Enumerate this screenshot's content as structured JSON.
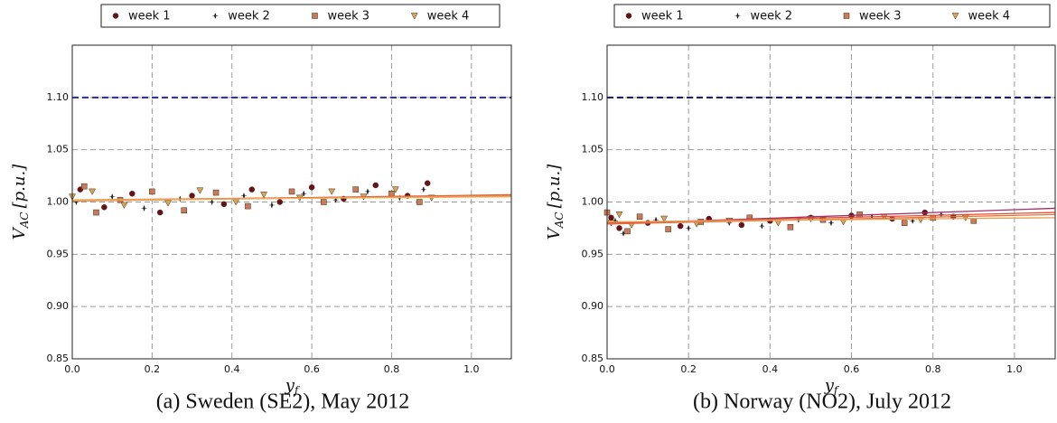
{
  "chart_data": [
    {
      "type": "scatter",
      "caption": "(a) Sweden (SE2), May 2012",
      "ylabel": {
        "main": "V",
        "sub": "AC",
        "rest": "[p.u.]"
      },
      "xlabel": {
        "main": "y",
        "sub": "f"
      },
      "xlim": [
        0,
        1.1
      ],
      "ylim": [
        0.85,
        1.15
      ],
      "grid": true,
      "xticks": [
        {
          "value": 0,
          "label": "0.0"
        },
        {
          "value": 0.2,
          "label": "0.2"
        },
        {
          "value": 0.4,
          "label": "0.4"
        },
        {
          "value": 0.6,
          "label": "0.6"
        },
        {
          "value": 0.8,
          "label": "0.8"
        },
        {
          "value": 1,
          "label": "1.0"
        }
      ],
      "yticks": [
        {
          "value": 0.85,
          "label": "0.85"
        },
        {
          "value": 0.9,
          "label": "0.90"
        },
        {
          "value": 0.95,
          "label": "0.95"
        },
        {
          "value": 1,
          "label": "1.00"
        },
        {
          "value": 1.05,
          "label": "1.05"
        },
        {
          "value": 1.1,
          "label": "1.10"
        }
      ],
      "hline": {
        "value": 1.1,
        "color": "#2a2aa0"
      },
      "series": [
        {
          "name": "week 1",
          "marker": "o",
          "color": "#6b0f1a",
          "fit_color": "#e0603a",
          "fit": [
            1.001,
            1.007
          ],
          "x": [
            0.02,
            0.08,
            0.15,
            0.22,
            0.3,
            0.38,
            0.45,
            0.52,
            0.6,
            0.68,
            0.76,
            0.84,
            0.89
          ],
          "values": [
            1.012,
            0.995,
            1.008,
            0.99,
            1.006,
            0.998,
            1.012,
            1.0,
            1.014,
            1.003,
            1.016,
            1.006,
            1.018
          ]
        },
        {
          "name": "week 2",
          "marker": "*",
          "color": "#222222",
          "fit_color": "#e8503a",
          "fit": [
            1.002,
            1.006
          ],
          "x": [
            0.01,
            0.1,
            0.18,
            0.27,
            0.35,
            0.43,
            0.5,
            0.58,
            0.66,
            0.74,
            0.82,
            0.88
          ],
          "values": [
            1.0,
            1.005,
            0.994,
            1.003,
            1.0,
            1.006,
            0.997,
            1.008,
            1.002,
            1.01,
            1.004,
            1.012
          ]
        },
        {
          "name": "week 3",
          "marker": "s",
          "color": "#c87a5a",
          "fit_color": "#ee8a50",
          "fit": [
            1.001,
            1.006
          ],
          "x": [
            0.03,
            0.06,
            0.12,
            0.2,
            0.28,
            0.36,
            0.44,
            0.55,
            0.63,
            0.71,
            0.8,
            0.87
          ],
          "values": [
            1.015,
            0.99,
            1.002,
            1.01,
            0.992,
            1.009,
            0.996,
            1.01,
            1.0,
            1.012,
            1.008,
            1.0
          ]
        },
        {
          "name": "week 4",
          "marker": "v",
          "color": "#d8a65a",
          "fit_color": "#e8b050",
          "fit": [
            1.002,
            1.005
          ],
          "x": [
            0.0,
            0.05,
            0.13,
            0.24,
            0.32,
            0.41,
            0.48,
            0.57,
            0.65,
            0.73,
            0.81,
            0.9
          ],
          "values": [
            1.005,
            1.01,
            0.997,
            0.999,
            1.011,
            1.0,
            1.007,
            1.004,
            1.01,
            1.005,
            1.012,
            1.004
          ]
        }
      ]
    },
    {
      "type": "scatter",
      "caption": "(b) Norway (NO2), July 2012",
      "ylabel": {
        "main": "V",
        "sub": "AC",
        "rest": "[p.u.]"
      },
      "xlabel": {
        "main": "y",
        "sub": "f"
      },
      "xlim": [
        0,
        1.1
      ],
      "ylim": [
        0.85,
        1.15
      ],
      "grid": true,
      "xticks": [
        {
          "value": 0,
          "label": "0.0"
        },
        {
          "value": 0.2,
          "label": "0.2"
        },
        {
          "value": 0.4,
          "label": "0.4"
        },
        {
          "value": 0.6,
          "label": "0.6"
        },
        {
          "value": 0.8,
          "label": "0.8"
        },
        {
          "value": 1,
          "label": "1.0"
        }
      ],
      "yticks": [
        {
          "value": 0.85,
          "label": "0.85"
        },
        {
          "value": 0.9,
          "label": "0.90"
        },
        {
          "value": 0.95,
          "label": "0.95"
        },
        {
          "value": 1,
          "label": "1.00"
        },
        {
          "value": 1.05,
          "label": "1.05"
        },
        {
          "value": 1.1,
          "label": "1.10"
        }
      ],
      "hline": {
        "value": 1.1,
        "color": "#10106a"
      },
      "series": [
        {
          "name": "week 1",
          "marker": "o",
          "color": "#6b0f1a",
          "fit_color": "#a0306a",
          "fit": [
            0.979,
            0.994
          ],
          "x": [
            0.01,
            0.03,
            0.1,
            0.18,
            0.25,
            0.33,
            0.4,
            0.5,
            0.6,
            0.7,
            0.78,
            0.85
          ],
          "values": [
            0.985,
            0.975,
            0.98,
            0.977,
            0.984,
            0.978,
            0.982,
            0.985,
            0.987,
            0.984,
            0.99,
            0.986
          ]
        },
        {
          "name": "week 2",
          "marker": "*",
          "color": "#222222",
          "fit_color": "#e05030",
          "fit": [
            0.98,
            0.99
          ],
          "x": [
            0.02,
            0.04,
            0.12,
            0.2,
            0.3,
            0.38,
            0.47,
            0.55,
            0.65,
            0.75,
            0.82
          ],
          "values": [
            0.982,
            0.97,
            0.983,
            0.975,
            0.98,
            0.977,
            0.983,
            0.98,
            0.986,
            0.982,
            0.988
          ]
        },
        {
          "name": "week 3",
          "marker": "s",
          "color": "#c87a5a",
          "fit_color": "#e87040",
          "fit": [
            0.979,
            0.988
          ],
          "x": [
            0.0,
            0.05,
            0.08,
            0.15,
            0.23,
            0.35,
            0.45,
            0.53,
            0.62,
            0.73,
            0.8,
            0.9
          ],
          "values": [
            0.99,
            0.972,
            0.986,
            0.974,
            0.981,
            0.985,
            0.976,
            0.983,
            0.988,
            0.98,
            0.985,
            0.982
          ]
        },
        {
          "name": "week 4",
          "marker": "v",
          "color": "#d8a65a",
          "fit_color": "#e8a050",
          "fit": [
            0.981,
            0.985
          ],
          "x": [
            0.01,
            0.03,
            0.06,
            0.14,
            0.22,
            0.3,
            0.42,
            0.5,
            0.58,
            0.68,
            0.77,
            0.88
          ],
          "values": [
            0.98,
            0.988,
            0.978,
            0.984,
            0.979,
            0.982,
            0.98,
            0.984,
            0.981,
            0.986,
            0.983,
            0.985
          ]
        }
      ]
    }
  ]
}
